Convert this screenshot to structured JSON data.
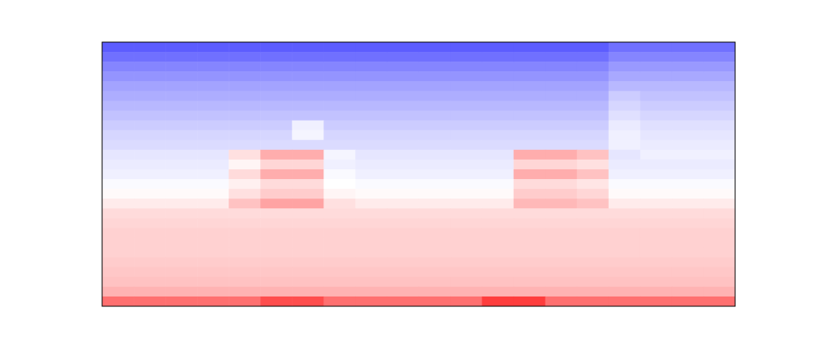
{
  "chart_data": {
    "type": "heatmap",
    "tick_labels": false,
    "zlim": [
      0,
      1
    ],
    "cells": [
      [
        0.18,
        0.18,
        0.18,
        0.18,
        0.18,
        0.18,
        0.18,
        0.18,
        0.18,
        0.18,
        0.18,
        0.18,
        0.18,
        0.18,
        0.18,
        0.18,
        0.22,
        0.22,
        0.22,
        0.22
      ],
      [
        0.22,
        0.22,
        0.22,
        0.22,
        0.22,
        0.22,
        0.22,
        0.22,
        0.22,
        0.22,
        0.22,
        0.22,
        0.22,
        0.22,
        0.22,
        0.22,
        0.26,
        0.26,
        0.26,
        0.26
      ],
      [
        0.26,
        0.26,
        0.26,
        0.26,
        0.26,
        0.26,
        0.26,
        0.26,
        0.26,
        0.26,
        0.26,
        0.26,
        0.26,
        0.26,
        0.26,
        0.26,
        0.3,
        0.3,
        0.3,
        0.3
      ],
      [
        0.29,
        0.29,
        0.29,
        0.29,
        0.29,
        0.29,
        0.29,
        0.29,
        0.29,
        0.29,
        0.29,
        0.29,
        0.29,
        0.29,
        0.29,
        0.29,
        0.33,
        0.33,
        0.33,
        0.33
      ],
      [
        0.32,
        0.32,
        0.32,
        0.32,
        0.32,
        0.32,
        0.32,
        0.32,
        0.32,
        0.32,
        0.32,
        0.32,
        0.32,
        0.32,
        0.32,
        0.32,
        0.36,
        0.36,
        0.36,
        0.36
      ],
      [
        0.34,
        0.34,
        0.34,
        0.34,
        0.34,
        0.34,
        0.34,
        0.34,
        0.34,
        0.34,
        0.34,
        0.34,
        0.34,
        0.34,
        0.34,
        0.34,
        0.4,
        0.38,
        0.38,
        0.38
      ],
      [
        0.36,
        0.36,
        0.36,
        0.36,
        0.36,
        0.36,
        0.36,
        0.36,
        0.36,
        0.36,
        0.36,
        0.36,
        0.36,
        0.36,
        0.36,
        0.36,
        0.42,
        0.4,
        0.4,
        0.4
      ],
      [
        0.38,
        0.38,
        0.38,
        0.38,
        0.38,
        0.38,
        0.38,
        0.38,
        0.38,
        0.38,
        0.38,
        0.38,
        0.38,
        0.38,
        0.38,
        0.38,
        0.44,
        0.42,
        0.42,
        0.42
      ],
      [
        0.4,
        0.4,
        0.4,
        0.4,
        0.4,
        0.4,
        0.47,
        0.4,
        0.4,
        0.4,
        0.4,
        0.4,
        0.4,
        0.4,
        0.4,
        0.4,
        0.46,
        0.44,
        0.44,
        0.44
      ],
      [
        0.42,
        0.42,
        0.42,
        0.42,
        0.42,
        0.42,
        0.48,
        0.42,
        0.42,
        0.42,
        0.42,
        0.42,
        0.42,
        0.42,
        0.42,
        0.42,
        0.47,
        0.45,
        0.45,
        0.45
      ],
      [
        0.43,
        0.43,
        0.43,
        0.43,
        0.43,
        0.43,
        0.43,
        0.43,
        0.43,
        0.43,
        0.43,
        0.43,
        0.43,
        0.43,
        0.43,
        0.43,
        0.47,
        0.46,
        0.46,
        0.46
      ],
      [
        0.45,
        0.45,
        0.45,
        0.45,
        0.56,
        0.66,
        0.66,
        0.48,
        0.45,
        0.45,
        0.45,
        0.45,
        0.45,
        0.66,
        0.66,
        0.62,
        0.45,
        0.47,
        0.47,
        0.47
      ],
      [
        0.46,
        0.46,
        0.46,
        0.46,
        0.52,
        0.58,
        0.58,
        0.47,
        0.46,
        0.46,
        0.46,
        0.46,
        0.46,
        0.58,
        0.58,
        0.56,
        0.46,
        0.46,
        0.46,
        0.46
      ],
      [
        0.47,
        0.47,
        0.47,
        0.47,
        0.57,
        0.66,
        0.66,
        0.49,
        0.47,
        0.47,
        0.47,
        0.47,
        0.47,
        0.66,
        0.66,
        0.62,
        0.47,
        0.47,
        0.47,
        0.47
      ],
      [
        0.49,
        0.49,
        0.49,
        0.49,
        0.53,
        0.57,
        0.57,
        0.5,
        0.49,
        0.49,
        0.49,
        0.49,
        0.49,
        0.57,
        0.57,
        0.55,
        0.49,
        0.49,
        0.49,
        0.49
      ],
      [
        0.51,
        0.51,
        0.51,
        0.51,
        0.56,
        0.6,
        0.6,
        0.52,
        0.51,
        0.51,
        0.51,
        0.51,
        0.51,
        0.6,
        0.6,
        0.58,
        0.51,
        0.51,
        0.51,
        0.51
      ],
      [
        0.54,
        0.54,
        0.54,
        0.54,
        0.62,
        0.68,
        0.68,
        0.56,
        0.54,
        0.54,
        0.54,
        0.54,
        0.54,
        0.64,
        0.64,
        0.62,
        0.54,
        0.54,
        0.54,
        0.54
      ],
      [
        0.57,
        0.57,
        0.57,
        0.57,
        0.57,
        0.57,
        0.57,
        0.57,
        0.57,
        0.57,
        0.57,
        0.57,
        0.57,
        0.57,
        0.57,
        0.57,
        0.57,
        0.57,
        0.57,
        0.57
      ],
      [
        0.58,
        0.58,
        0.58,
        0.58,
        0.58,
        0.58,
        0.58,
        0.58,
        0.58,
        0.58,
        0.58,
        0.58,
        0.58,
        0.58,
        0.58,
        0.58,
        0.58,
        0.58,
        0.58,
        0.58
      ],
      [
        0.59,
        0.59,
        0.59,
        0.59,
        0.59,
        0.59,
        0.59,
        0.59,
        0.59,
        0.59,
        0.59,
        0.59,
        0.59,
        0.59,
        0.59,
        0.59,
        0.59,
        0.59,
        0.59,
        0.59
      ],
      [
        0.59,
        0.59,
        0.59,
        0.59,
        0.59,
        0.59,
        0.59,
        0.59,
        0.59,
        0.59,
        0.59,
        0.59,
        0.59,
        0.59,
        0.59,
        0.59,
        0.59,
        0.59,
        0.59,
        0.59
      ],
      [
        0.59,
        0.59,
        0.59,
        0.59,
        0.59,
        0.59,
        0.59,
        0.59,
        0.59,
        0.59,
        0.59,
        0.59,
        0.59,
        0.59,
        0.59,
        0.59,
        0.59,
        0.59,
        0.59,
        0.59
      ],
      [
        0.6,
        0.6,
        0.6,
        0.6,
        0.6,
        0.6,
        0.6,
        0.6,
        0.6,
        0.6,
        0.6,
        0.6,
        0.6,
        0.6,
        0.6,
        0.6,
        0.6,
        0.6,
        0.6,
        0.6
      ],
      [
        0.61,
        0.61,
        0.61,
        0.61,
        0.61,
        0.61,
        0.61,
        0.61,
        0.61,
        0.61,
        0.61,
        0.61,
        0.61,
        0.61,
        0.61,
        0.61,
        0.61,
        0.61,
        0.61,
        0.61
      ],
      [
        0.62,
        0.62,
        0.62,
        0.62,
        0.62,
        0.62,
        0.62,
        0.62,
        0.62,
        0.62,
        0.62,
        0.62,
        0.62,
        0.62,
        0.62,
        0.62,
        0.62,
        0.62,
        0.62,
        0.62
      ],
      [
        0.65,
        0.65,
        0.65,
        0.65,
        0.65,
        0.65,
        0.65,
        0.65,
        0.65,
        0.65,
        0.65,
        0.65,
        0.65,
        0.65,
        0.65,
        0.65,
        0.65,
        0.65,
        0.65,
        0.65
      ],
      [
        0.78,
        0.78,
        0.78,
        0.78,
        0.78,
        0.85,
        0.85,
        0.78,
        0.78,
        0.78,
        0.78,
        0.78,
        0.88,
        0.88,
        0.78,
        0.78,
        0.78,
        0.78,
        0.78,
        0.78
      ]
    ]
  }
}
